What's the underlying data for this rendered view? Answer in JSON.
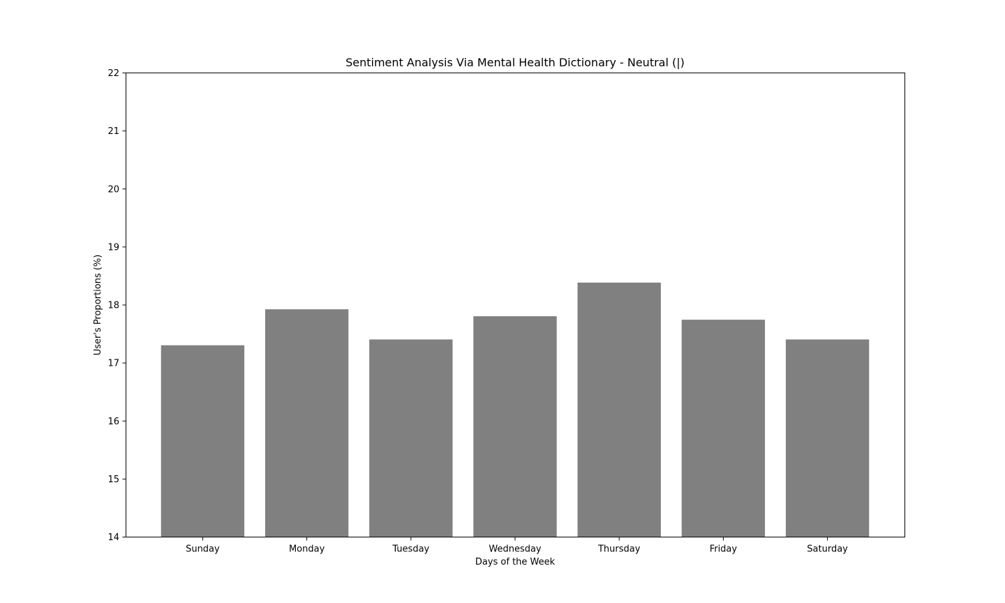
{
  "chart_data": {
    "type": "bar",
    "title": "Sentiment Analysis Via Mental Health Dictionary - Neutral (|)",
    "xlabel": "Days of the Week",
    "ylabel": "User's Proportions (%)",
    "categories": [
      "Sunday",
      "Monday",
      "Tuesday",
      "Wednesday",
      "Thursday",
      "Friday",
      "Saturday"
    ],
    "values": [
      17.3,
      17.92,
      17.4,
      17.8,
      18.38,
      17.74,
      17.4
    ],
    "ylim": [
      14,
      22
    ],
    "yticks": [
      14,
      15,
      16,
      17,
      18,
      19,
      20,
      21,
      22
    ],
    "bar_color": "#808080",
    "grid": false,
    "legend": "none"
  }
}
